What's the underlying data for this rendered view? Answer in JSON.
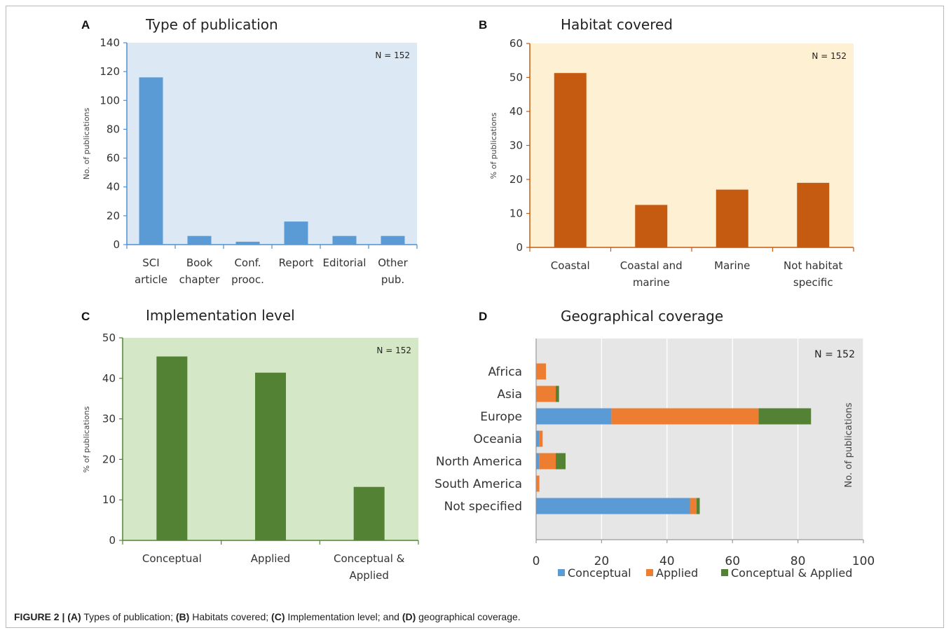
{
  "caption": {
    "figure_label": "FIGURE 2 |",
    "a_tag": "(A)",
    "a_text": " Types of publication; ",
    "b_tag": "(B)",
    "b_text": " Habitats covered; ",
    "c_tag": "(C)",
    "c_text": " Implementation level; and ",
    "d_tag": "(D)",
    "d_text": " geographical coverage."
  },
  "chart_data": [
    {
      "panel": "A",
      "type": "bar",
      "title": "Type of publication",
      "ylabel": "No. of publications",
      "note": "N = 152",
      "categories": [
        [
          "SCI",
          "article"
        ],
        [
          "Book",
          "chapter"
        ],
        [
          "Conf.",
          "prooc."
        ],
        [
          "Report"
        ],
        [
          "Editorial"
        ],
        [
          "Other",
          "pub."
        ]
      ],
      "values": [
        116,
        6,
        2,
        16,
        6,
        6
      ],
      "ylim": [
        0,
        140
      ],
      "yticks": [
        0,
        20,
        40,
        60,
        80,
        100,
        120,
        140
      ],
      "colors": {
        "bar": "#5b9bd5",
        "background": "#dce9f5",
        "axis": "#4f8fd0"
      }
    },
    {
      "panel": "B",
      "type": "bar",
      "title": "Habitat covered",
      "ylabel": "% of publications",
      "note": "N = 152",
      "categories": [
        [
          "Coastal"
        ],
        [
          "Coastal and",
          "marine"
        ],
        [
          "Marine"
        ],
        [
          "Not habitat",
          "specific"
        ]
      ],
      "values": [
        51.3,
        12.5,
        17,
        19
      ],
      "ylim": [
        0,
        60
      ],
      "yticks": [
        0,
        10,
        20,
        30,
        40,
        50,
        60
      ],
      "colors": {
        "bar": "#c55a11",
        "background": "#fdf0d3",
        "axis": "#c55a11"
      }
    },
    {
      "panel": "C",
      "type": "bar",
      "title": "Implementation level",
      "ylabel": "% of publications",
      "note": "N = 152",
      "categories": [
        [
          "Conceptual"
        ],
        [
          "Applied"
        ],
        [
          "Conceptual &",
          "Applied"
        ]
      ],
      "values": [
        45.4,
        41.4,
        13.2
      ],
      "ylim": [
        0,
        50
      ],
      "yticks": [
        0,
        10,
        20,
        30,
        40,
        50
      ],
      "colors": {
        "bar": "#548235",
        "background": "#d4e8c7",
        "axis": "#548235"
      }
    },
    {
      "panel": "D",
      "type": "bar",
      "orientation": "horizontal",
      "stacked": true,
      "title": "Geographical coverage",
      "ylabel": "No. of publications",
      "note": "N = 152",
      "categories": [
        "Africa",
        "Asia",
        "Europe",
        "Oceania",
        "North America",
        "South America",
        "Not specified"
      ],
      "series": [
        {
          "name": "Conceptual",
          "values": [
            0,
            0,
            23,
            1,
            1,
            0,
            47
          ],
          "color": "#5b9bd5"
        },
        {
          "name": "Applied",
          "values": [
            3,
            6,
            45,
            1,
            5,
            1,
            2
          ],
          "color": "#ed7d31"
        },
        {
          "name": "Conceptual & Applied",
          "values": [
            0,
            1,
            16,
            0,
            3,
            0,
            1
          ],
          "color": "#548235"
        }
      ],
      "xlim": [
        0,
        100
      ],
      "xticks": [
        0,
        20,
        40,
        60,
        80,
        100
      ],
      "grid": true,
      "legend": "bottom",
      "colors": {
        "background": "#e7e6e6",
        "grid": "#ffffff",
        "axis": "#999999"
      }
    }
  ]
}
